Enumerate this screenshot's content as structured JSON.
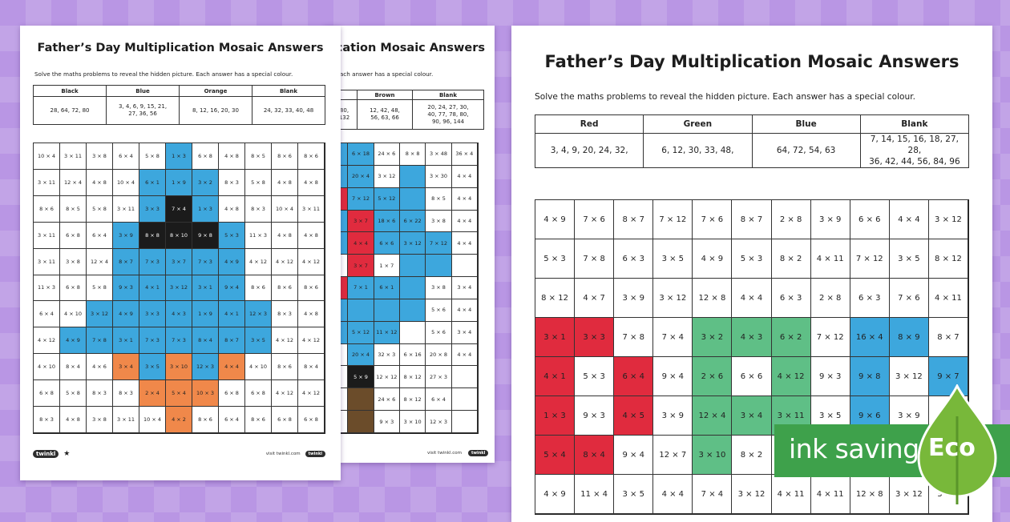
{
  "page_back": {
    "title": "Father’s Day Multiplication Mosaic Answers",
    "instructions": "Solve the maths problems to reveal the hidden picture. Each answer has a special colour.",
    "key": [
      {
        "name": "Brown",
        "values": "12, 42, 48,\n56, 63, 66"
      },
      {
        "name": "Blank",
        "values": "20, 24, 27, 30,\n40, 77, 78, 80,\n90, 96, 144"
      }
    ],
    "key_fragment": "80,\n132",
    "grid": [
      [
        "",
        "6 × 18",
        "24 × 6",
        "8 × 8",
        "3 × 48",
        "36 × 4"
      ],
      [
        "",
        "20 × 4",
        "3 × 12",
        "",
        "3 × 30",
        "4 × 4"
      ],
      [
        "",
        "7 × 12",
        "5 × 12",
        "",
        "8 × 5",
        "4 × 4"
      ],
      [
        "",
        "3 × 7",
        "18 × 6",
        "6 × 22",
        "3 × 8",
        "4 × 4"
      ],
      [
        "",
        "4 × 4",
        "6 × 6",
        "3 × 12",
        "7 × 12",
        "4 × 4"
      ],
      [
        "",
        "3 × 7",
        "1 × 7",
        "",
        "",
        ""
      ],
      [
        "",
        "7 × 1",
        "6 × 1",
        "",
        "3 × 8",
        "3 × 4"
      ],
      [
        "",
        "",
        "",
        "",
        "5 × 6",
        "4 × 4"
      ],
      [
        "",
        "5 × 12",
        "11 × 12",
        "",
        "5 × 6",
        "3 × 4"
      ],
      [
        "",
        "20 × 4",
        "32 × 3",
        "6 × 16",
        "20 × 8",
        "4 × 4"
      ],
      [
        "",
        "5 × 9",
        "12 × 12",
        "8 × 12",
        "27 × 3",
        ""
      ],
      [
        "",
        "",
        "24 × 6",
        "8 × 12",
        "6 × 4",
        ""
      ],
      [
        "",
        "",
        "9 × 3",
        "3 × 10",
        "12 × 3",
        ""
      ]
    ],
    "colors": [
      [
        "b",
        "b",
        "w",
        "w",
        "w",
        "w"
      ],
      [
        "b",
        "b",
        "w",
        "b",
        "w",
        "w"
      ],
      [
        "r",
        "b",
        "b",
        "b",
        "w",
        "w"
      ],
      [
        "b",
        "r",
        "b",
        "b",
        "w",
        "w"
      ],
      [
        "b",
        "r",
        "b",
        "b",
        "b",
        "w"
      ],
      [
        "w",
        "r",
        "w",
        "b",
        "b",
        "w"
      ],
      [
        "r",
        "b",
        "b",
        "b",
        "w",
        "w"
      ],
      [
        "b",
        "b",
        "b",
        "b",
        "w",
        "w"
      ],
      [
        "b",
        "b",
        "b",
        "w",
        "w",
        "w"
      ],
      [
        "w",
        "b",
        "w",
        "w",
        "w",
        "w"
      ],
      [
        "w",
        "k",
        "w",
        "w",
        "w",
        "w"
      ],
      [
        "w",
        "n",
        "w",
        "w",
        "w",
        "w"
      ],
      [
        "w",
        "n",
        "w",
        "w",
        "w",
        "w"
      ]
    ],
    "footer": "visit twinkl.com"
  },
  "page_left": {
    "title": "Father’s Day Multiplication Mosaic Answers",
    "instructions": "Solve the maths problems to reveal the hidden picture. Each answer has a special colour.",
    "key": [
      {
        "name": "Black",
        "values": "28, 64, 72, 80"
      },
      {
        "name": "Blue",
        "values": "3, 4, 6, 9, 15, 21,\n27, 36, 56"
      },
      {
        "name": "Orange",
        "values": "8, 12, 16, 20, 30"
      },
      {
        "name": "Blank",
        "values": "24, 32, 33, 40, 48"
      }
    ],
    "grid": [
      [
        "10 × 4",
        "3 × 11",
        "3 × 8",
        "6 × 4",
        "5 × 8",
        "1 × 3",
        "6 × 8",
        "4 × 8",
        "8 × 5",
        "8 × 6",
        "8 × 6"
      ],
      [
        "3 × 11",
        "12 × 4",
        "4 × 8",
        "10 × 4",
        "6 × 1",
        "1 × 9",
        "3 × 2",
        "8 × 3",
        "5 × 8",
        "4 × 8",
        "4 × 8"
      ],
      [
        "8 × 6",
        "8 × 5",
        "5 × 8",
        "3 × 11",
        "3 × 3",
        "7 × 4",
        "1 × 3",
        "4 × 8",
        "8 × 3",
        "10 × 4",
        "3 × 11"
      ],
      [
        "3 × 11",
        "6 × 8",
        "6 × 4",
        "3 × 9",
        "8 × 8",
        "8 × 10",
        "9 × 8",
        "5 × 3",
        "11 × 3",
        "4 × 8",
        "4 × 8"
      ],
      [
        "3 × 11",
        "3 × 8",
        "12 × 4",
        "8 × 7",
        "7 × 3",
        "3 × 7",
        "7 × 3",
        "4 × 9",
        "4 × 12",
        "4 × 12",
        "4 × 12"
      ],
      [
        "11 × 3",
        "6 × 8",
        "5 × 8",
        "9 × 3",
        "4 × 1",
        "3 × 12",
        "3 × 1",
        "9 × 4",
        "8 × 6",
        "8 × 6",
        "8 × 6"
      ],
      [
        "6 × 4",
        "4 × 10",
        "3 × 12",
        "4 × 9",
        "3 × 3",
        "4 × 3",
        "1 × 9",
        "4 × 1",
        "12 × 3",
        "8 × 3",
        "4 × 8"
      ],
      [
        "4 × 12",
        "4 × 9",
        "7 × 8",
        "3 × 1",
        "7 × 3",
        "7 × 3",
        "8 × 4",
        "8 × 7",
        "3 × 5",
        "4 × 12",
        "4 × 12"
      ],
      [
        "4 × 10",
        "8 × 4",
        "4 × 6",
        "3 × 4",
        "3 × 5",
        "3 × 10",
        "12 × 3",
        "4 × 4",
        "4 × 10",
        "8 × 6",
        "8 × 4"
      ],
      [
        "6 × 8",
        "5 × 8",
        "8 × 3",
        "8 × 3",
        "2 × 4",
        "5 × 4",
        "10 × 3",
        "6 × 8",
        "6 × 8",
        "4 × 12",
        "4 × 12"
      ],
      [
        "8 × 3",
        "4 × 8",
        "3 × 8",
        "3 × 11",
        "10 × 4",
        "4 × 2",
        "8 × 6",
        "6 × 4",
        "8 × 6",
        "6 × 8",
        "6 × 8"
      ]
    ],
    "colors": [
      [
        "w",
        "w",
        "w",
        "w",
        "w",
        "b",
        "w",
        "w",
        "w",
        "w",
        "w"
      ],
      [
        "w",
        "w",
        "w",
        "w",
        "b",
        "b",
        "b",
        "w",
        "w",
        "w",
        "w"
      ],
      [
        "w",
        "w",
        "w",
        "w",
        "b",
        "k",
        "b",
        "w",
        "w",
        "w",
        "w"
      ],
      [
        "w",
        "w",
        "w",
        "b",
        "k",
        "k",
        "k",
        "b",
        "w",
        "w",
        "w"
      ],
      [
        "w",
        "w",
        "w",
        "b",
        "b",
        "b",
        "b",
        "b",
        "w",
        "w",
        "w"
      ],
      [
        "w",
        "w",
        "w",
        "b",
        "b",
        "b",
        "b",
        "b",
        "w",
        "w",
        "w"
      ],
      [
        "w",
        "w",
        "b",
        "b",
        "b",
        "b",
        "b",
        "b",
        "b",
        "w",
        "w"
      ],
      [
        "w",
        "b",
        "b",
        "b",
        "b",
        "b",
        "b",
        "b",
        "b",
        "w",
        "w"
      ],
      [
        "w",
        "w",
        "w",
        "o",
        "b",
        "o",
        "b",
        "o",
        "w",
        "w",
        "w"
      ],
      [
        "w",
        "w",
        "w",
        "w",
        "o",
        "o",
        "o",
        "w",
        "w",
        "w",
        "w"
      ],
      [
        "w",
        "w",
        "w",
        "w",
        "w",
        "o",
        "w",
        "w",
        "w",
        "w",
        "w"
      ]
    ],
    "footer": "visit twinkl.com"
  },
  "page_right": {
    "title": "Father’s Day Multiplication Mosaic Answers",
    "instructions": "Solve the maths problems to reveal the hidden picture. Each answer has a special colour.",
    "key": [
      {
        "name": "Red",
        "values": "3, 4, 9, 20, 24, 32,"
      },
      {
        "name": "Green",
        "values": "6, 12, 30, 33, 48,"
      },
      {
        "name": "Blue",
        "values": "64, 72, 54, 63"
      },
      {
        "name": "Blank",
        "values": "7, 14, 15, 16, 18, 27, 28,\n36, 42, 44, 56, 84, 96"
      }
    ],
    "grid": [
      [
        "4 × 9",
        "7 × 6",
        "8 × 7",
        "7 × 12",
        "7 × 6",
        "8 × 7",
        "2 × 8",
        "3 × 9",
        "6 × 6",
        "4 × 4",
        "3 × 12"
      ],
      [
        "5 × 3",
        "7 × 8",
        "6 × 3",
        "3 × 5",
        "4 × 9",
        "5 × 3",
        "8 × 2",
        "4 × 11",
        "7 × 12",
        "3 × 5",
        "8 × 12"
      ],
      [
        "8 × 12",
        "4 × 7",
        "3 × 9",
        "3 × 12",
        "12 × 8",
        "4 × 4",
        "6 × 3",
        "2 × 8",
        "6 × 3",
        "7 × 6",
        "4 × 11"
      ],
      [
        "3 × 1",
        "3 × 3",
        "7 × 8",
        "7 × 4",
        "3 × 2",
        "4 × 3",
        "6 × 2",
        "7 × 12",
        "16 × 4",
        "8 × 9",
        "8 × 7"
      ],
      [
        "4 × 1",
        "5 × 3",
        "6 × 4",
        "9 × 4",
        "2 × 6",
        "6 × 6",
        "4 × 12",
        "9 × 3",
        "9 × 8",
        "3 × 12",
        "9 × 7"
      ],
      [
        "1 × 3",
        "9 × 3",
        "4 × 5",
        "3 × 9",
        "12 × 4",
        "3 × 4",
        "3 × 11",
        "3 × 5",
        "9 × 6",
        "3 × 9",
        ""
      ],
      [
        "5 × 4",
        "8 × 4",
        "9 × 4",
        "12 × 7",
        "3 × 10",
        "8 × 2",
        "",
        "",
        "",
        "",
        ""
      ],
      [
        "4 × 9",
        "11 × 4",
        "3 × 5",
        "4 × 4",
        "7 × 4",
        "3 × 12",
        "4 × 11",
        "4 × 11",
        "12 × 8",
        "3 × 12",
        "3 × 9"
      ]
    ],
    "colors": [
      [
        "w",
        "w",
        "w",
        "w",
        "w",
        "w",
        "w",
        "w",
        "w",
        "w",
        "w"
      ],
      [
        "w",
        "w",
        "w",
        "w",
        "w",
        "w",
        "w",
        "w",
        "w",
        "w",
        "w"
      ],
      [
        "w",
        "w",
        "w",
        "w",
        "w",
        "w",
        "w",
        "w",
        "w",
        "w",
        "w"
      ],
      [
        "r",
        "r",
        "w",
        "w",
        "g",
        "g",
        "g",
        "w",
        "b",
        "b",
        "w"
      ],
      [
        "r",
        "w",
        "r",
        "w",
        "g",
        "w",
        "g",
        "w",
        "b",
        "w",
        "b"
      ],
      [
        "r",
        "w",
        "r",
        "w",
        "g",
        "g",
        "g",
        "w",
        "b",
        "w",
        "w"
      ],
      [
        "r",
        "r",
        "w",
        "w",
        "g",
        "w",
        "w",
        "w",
        "w",
        "w",
        "w"
      ],
      [
        "w",
        "w",
        "w",
        "w",
        "w",
        "w",
        "w",
        "w",
        "w",
        "w",
        "w"
      ]
    ]
  },
  "palette": {
    "b": "#3da7dd",
    "k": "#1b1b1b",
    "o": "#f0884a",
    "r": "#e02b3e",
    "g": "#5fbf86",
    "n": "#6b4c2a",
    "w": "#ffffff"
  },
  "badge": {
    "label": "ink saving",
    "eco": "Eco",
    "color": "#3ea14b"
  }
}
